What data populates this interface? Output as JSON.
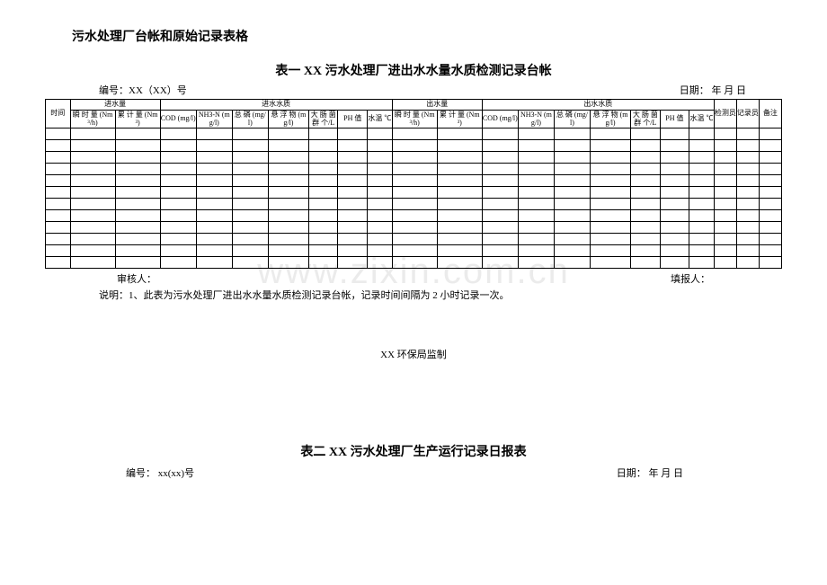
{
  "doc_title": "污水处理厂台帐和原始记录表格",
  "table1": {
    "title": "表一   XX 污水处理厂进出水水量水质检测记录台帐",
    "serial_label": "编号：XX（XX）号",
    "date_label": "日期：    年    月    日",
    "col_time": "时间",
    "grp_in_vol": "进水量",
    "grp_in_qual": "进水水质",
    "grp_out_vol": "出水量",
    "grp_out_qual": "出水水质",
    "col_inspector": "检测员",
    "col_recorder": "记录员",
    "col_remark": "备注",
    "c_instant": "瞬 时 量 (Nm³/h)",
    "c_cum": "累 计 量 (Nm³)",
    "c_cod": "COD (mg/l)",
    "c_nh3": "NH3-N (mg/l)",
    "c_tp": "总 磷 (mg/l)",
    "c_ss": "悬 浮 物 (mg/l)",
    "c_coli": "大 肠 菌 群 个/L",
    "c_ph": "PH 值",
    "c_temp": "水温 ℃",
    "auditor": "审核人：",
    "filler": "填报人：",
    "note": "说明：1、此表为污水处理厂进出水水量水质检测记录台帐，记录时间间隔为 2 小时记录一次。",
    "supervise": "XX 环保局监制"
  },
  "table2": {
    "title": "表二   XX 污水处理厂生产运行记录日报表",
    "serial_label": "编号：  xx(xx)号",
    "date_label": "日期：      年      月      日"
  },
  "watermark": "www.zixin.com.cn",
  "empty_rows": 12
}
